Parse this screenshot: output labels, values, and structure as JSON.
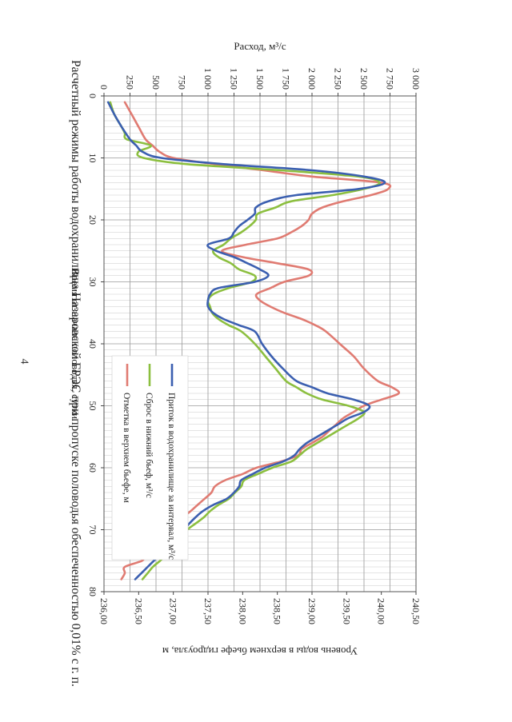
{
  "page": {
    "number": "4"
  },
  "chart_data": {
    "type": "line",
    "title": "Расчетный режимы работы водохранилища Назаровской ГРЭС при пропуске половодья обеспеченностью 0,01% с г. п.",
    "xlabel": "Время от начала половодья, сутки",
    "ylabel": "Расход, м³/с",
    "y2label": "Уровень воды в верхнем бьефе гидроузла, м",
    "xlim": [
      0,
      80
    ],
    "ylim": [
      0,
      3000
    ],
    "y2lim": [
      236.0,
      240.5
    ],
    "grid": true,
    "x_ticks": [
      "0",
      "10",
      "20",
      "30",
      "40",
      "50",
      "60",
      "70",
      "80"
    ],
    "y_ticks": [
      "0",
      "250",
      "500",
      "750",
      "1 000",
      "1 250",
      "1 500",
      "1 750",
      "2 000",
      "2 250",
      "2 500",
      "2 750",
      "3 000"
    ],
    "y2_ticks": [
      "236,00",
      "236,50",
      "237,00",
      "237,50",
      "238,00",
      "238,50",
      "239,00",
      "239,50",
      "240,00",
      "240,50"
    ],
    "legend_position": "inside-right",
    "series": [
      {
        "name": "Приток в водохранилище за интервал,  м³/с",
        "color": "#3b5fb0",
        "axis": "left",
        "x": [
          1,
          3,
          5,
          7,
          8,
          9,
          10,
          11,
          12,
          13,
          14,
          15,
          16,
          17,
          18,
          19,
          20,
          21,
          22,
          23,
          24,
          25,
          26,
          27,
          28,
          29,
          30,
          31,
          32,
          33,
          34,
          35,
          36,
          37,
          38,
          40,
          42,
          44,
          46,
          47,
          48,
          49,
          50,
          51,
          52,
          53,
          54,
          55,
          56,
          57,
          58,
          59,
          60,
          61,
          62,
          63,
          64,
          65,
          66,
          67,
          68,
          69,
          70,
          71,
          72,
          73,
          74,
          75,
          76,
          77,
          78
        ],
        "y": [
          40,
          100,
          170,
          250,
          310,
          370,
          550,
          1150,
          2000,
          2500,
          2700,
          2450,
          1850,
          1580,
          1460,
          1450,
          1380,
          1300,
          1250,
          1200,
          1000,
          1080,
          1250,
          1380,
          1500,
          1580,
          1450,
          1100,
          1020,
          1000,
          1000,
          1050,
          1150,
          1300,
          1450,
          1520,
          1610,
          1720,
          1850,
          2000,
          2150,
          2400,
          2550,
          2500,
          2350,
          2250,
          2150,
          2050,
          1950,
          1880,
          1830,
          1720,
          1550,
          1430,
          1320,
          1300,
          1250,
          1180,
          1050,
          950,
          880,
          820,
          770,
          680,
          640,
          610,
          540,
          480,
          420,
          360,
          300
        ]
      },
      {
        "name": "Сброс в нижний бьеф,  м³/с",
        "color": "#8cbf3f",
        "axis": "left",
        "x": [
          1,
          3,
          5,
          6,
          7,
          8,
          9,
          10,
          11,
          12,
          13,
          14,
          15,
          16,
          17,
          18,
          19,
          20,
          21,
          22,
          23,
          24,
          25,
          26,
          27,
          28,
          29,
          30,
          31,
          32,
          33,
          34,
          35,
          36,
          37,
          38,
          40,
          42,
          44,
          46,
          47,
          48,
          49,
          50,
          51,
          52,
          53,
          54,
          55,
          56,
          57,
          58,
          59,
          60,
          61,
          62,
          63,
          64,
          65,
          66,
          67,
          68,
          69,
          70,
          71,
          72,
          73,
          74,
          75,
          76,
          77,
          78
        ],
        "y": [
          60,
          100,
          170,
          200,
          220,
          450,
          330,
          380,
          800,
          1700,
          2450,
          2650,
          2500,
          2200,
          1800,
          1650,
          1480,
          1460,
          1400,
          1320,
          1220,
          1150,
          1050,
          1100,
          1220,
          1300,
          1450,
          1420,
          1200,
          1050,
          1000,
          1020,
          1040,
          1100,
          1200,
          1320,
          1450,
          1550,
          1650,
          1750,
          1850,
          1950,
          2100,
          2350,
          2500,
          2450,
          2350,
          2250,
          2150,
          2050,
          1950,
          1880,
          1800,
          1620,
          1480,
          1350,
          1320,
          1260,
          1200,
          1100,
          1020,
          960,
          880,
          800,
          750,
          700,
          660,
          600,
          540,
          470,
          420,
          370
        ]
      },
      {
        "name": "Отметка в верхнем бьефе, м",
        "color": "#e07b72",
        "axis": "right",
        "x": [
          1,
          3,
          5,
          7,
          8,
          9,
          10,
          11,
          12,
          13,
          14,
          15,
          16,
          17,
          18,
          19,
          20,
          21,
          22,
          23,
          24,
          25,
          26,
          27,
          28,
          29,
          30,
          31,
          32,
          33,
          34,
          35,
          36,
          37,
          38,
          40,
          42,
          44,
          46,
          47,
          48,
          49,
          50,
          51,
          52,
          53,
          54,
          55,
          56,
          57,
          58,
          59,
          60,
          61,
          62,
          63,
          64,
          65,
          66,
          67,
          68,
          69,
          70,
          71,
          72,
          73,
          74,
          75,
          76,
          77,
          78
        ],
        "y": [
          236.3,
          236.4,
          236.5,
          236.6,
          236.7,
          236.8,
          237.0,
          237.6,
          238.3,
          239.0,
          240.0,
          240.1,
          239.85,
          239.45,
          239.15,
          239.0,
          238.95,
          238.85,
          238.7,
          238.5,
          238.05,
          237.7,
          238.0,
          238.5,
          238.95,
          238.95,
          238.6,
          238.4,
          238.2,
          238.25,
          238.4,
          238.6,
          238.85,
          239.05,
          239.2,
          239.4,
          239.6,
          239.75,
          239.95,
          240.15,
          240.25,
          240.0,
          239.75,
          239.6,
          239.45,
          239.35,
          239.25,
          239.15,
          239.0,
          238.85,
          238.8,
          238.55,
          238.2,
          238.0,
          237.75,
          237.6,
          237.55,
          237.45,
          237.35,
          237.25,
          237.15,
          237.15,
          237.05,
          236.95,
          236.85,
          236.75,
          236.6,
          236.55,
          236.3,
          236.3,
          236.25
        ]
      }
    ]
  }
}
